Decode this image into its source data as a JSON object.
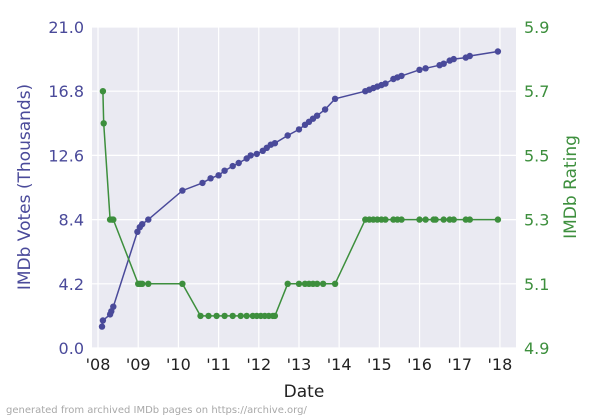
{
  "footnote": "generated from archived IMDb pages on https://archive.org/",
  "chart_data": {
    "type": "line",
    "xlabel": "Date",
    "x_ticks": [
      "'08",
      "'09",
      "'10",
      "'11",
      "'12",
      "'13",
      "'14",
      "'15",
      "'16",
      "'17",
      "'18"
    ],
    "xlim": [
      2007.85,
      2018.4
    ],
    "grid": true,
    "axes": {
      "left": {
        "label": "IMDb Votes (Thousands)",
        "ticks": [
          "0.0",
          "4.2",
          "8.4",
          "12.6",
          "16.8",
          "21.0"
        ],
        "lim": [
          0,
          21
        ],
        "color": "#4a4a9a"
      },
      "right": {
        "label": "IMDb Rating",
        "ticks": [
          "4.9",
          "5.1",
          "5.3",
          "5.5",
          "5.7",
          "5.9"
        ],
        "lim": [
          4.9,
          5.9
        ],
        "color": "#3d8f3d"
      }
    },
    "series": [
      {
        "axis": "left",
        "color": "#4a4a9a",
        "x": [
          2008.1,
          2008.12,
          2008.3,
          2008.33,
          2008.38,
          2008.98,
          2009.04,
          2009.1,
          2009.25,
          2010.1,
          2010.6,
          2010.8,
          2011.0,
          2011.15,
          2011.35,
          2011.5,
          2011.7,
          2011.8,
          2011.95,
          2012.1,
          2012.2,
          2012.3,
          2012.4,
          2012.72,
          2013.0,
          2013.15,
          2013.25,
          2013.35,
          2013.45,
          2013.65,
          2013.9,
          2014.65,
          2014.75,
          2014.85,
          2014.95,
          2015.05,
          2015.15,
          2015.35,
          2015.45,
          2015.55,
          2016.0,
          2016.15,
          2016.5,
          2016.6,
          2016.75,
          2016.85,
          2017.15,
          2017.25,
          2017.95
        ],
        "values": [
          1.4,
          1.8,
          2.2,
          2.4,
          2.7,
          7.6,
          7.9,
          8.1,
          8.4,
          10.3,
          10.8,
          11.1,
          11.3,
          11.6,
          11.9,
          12.1,
          12.4,
          12.6,
          12.7,
          12.9,
          13.1,
          13.3,
          13.4,
          13.9,
          14.3,
          14.6,
          14.8,
          15.0,
          15.2,
          15.6,
          16.3,
          16.8,
          16.9,
          17.0,
          17.1,
          17.2,
          17.3,
          17.6,
          17.7,
          17.8,
          18.2,
          18.3,
          18.5,
          18.6,
          18.8,
          18.9,
          19.0,
          19.1,
          19.4
        ]
      },
      {
        "axis": "right",
        "color": "#3d8f3d",
        "x": [
          2008.12,
          2008.14,
          2008.3,
          2008.35,
          2008.38,
          2009.0,
          2009.05,
          2009.1,
          2009.25,
          2010.1,
          2010.55,
          2010.75,
          2010.95,
          2011.15,
          2011.35,
          2011.55,
          2011.7,
          2011.85,
          2011.95,
          2012.05,
          2012.15,
          2012.25,
          2012.35,
          2012.4,
          2012.72,
          2013.0,
          2013.15,
          2013.25,
          2013.35,
          2013.45,
          2013.6,
          2013.9,
          2014.65,
          2014.75,
          2014.85,
          2014.95,
          2015.05,
          2015.15,
          2015.35,
          2015.45,
          2015.55,
          2016.0,
          2016.15,
          2016.35,
          2016.4,
          2016.6,
          2016.75,
          2016.85,
          2017.15,
          2017.25,
          2017.95
        ],
        "values": [
          5.7,
          5.6,
          5.3,
          5.3,
          5.3,
          5.1,
          5.1,
          5.1,
          5.1,
          5.1,
          5.0,
          5.0,
          5.0,
          5.0,
          5.0,
          5.0,
          5.0,
          5.0,
          5.0,
          5.0,
          5.0,
          5.0,
          5.0,
          5.0,
          5.1,
          5.1,
          5.1,
          5.1,
          5.1,
          5.1,
          5.1,
          5.1,
          5.3,
          5.3,
          5.3,
          5.3,
          5.3,
          5.3,
          5.3,
          5.3,
          5.3,
          5.3,
          5.3,
          5.3,
          5.3,
          5.3,
          5.3,
          5.3,
          5.3,
          5.3,
          5.3
        ]
      }
    ]
  }
}
